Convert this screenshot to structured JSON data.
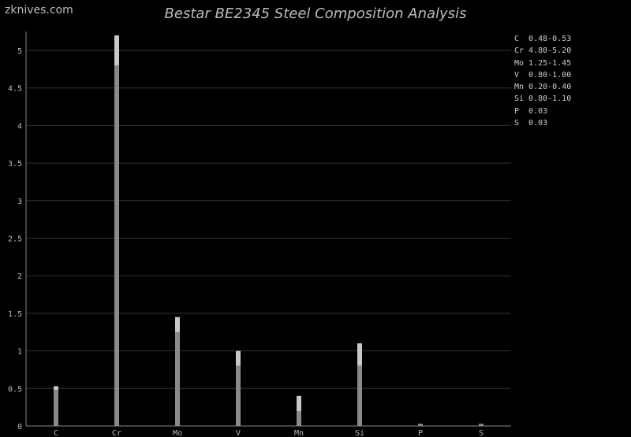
{
  "site_label": "zknives.com",
  "chart_data": {
    "type": "bar",
    "title": "Bestar BE2345 Steel Composition Analysis",
    "categories": [
      "C",
      "Cr",
      "Mo",
      "V",
      "Mn",
      "Si",
      "P",
      "S"
    ],
    "series": [
      {
        "values_min": [
          0.48,
          4.8,
          1.25,
          0.8,
          0.2,
          0.8,
          0.03,
          0.03
        ],
        "values_max": [
          0.53,
          5.2,
          1.45,
          1.0,
          0.4,
          1.1,
          0.03,
          0.03
        ]
      }
    ],
    "ylim": [
      0,
      5.2
    ],
    "yticks": [
      "0",
      "0.5",
      "1",
      "1.5",
      "2",
      "2.5",
      "3",
      "3.5",
      "4",
      "4.5",
      "5"
    ],
    "grid": true,
    "legend_placement": "top-right",
    "legend": [
      "C  0.48-0.53",
      "Cr 4.80-5.20",
      "Mo 1.25-1.45",
      "V  0.80-1.00",
      "Mn 0.20-0.40",
      "Si 0.80-1.10",
      "P  0.03",
      "S  0.03"
    ],
    "colors": {
      "min_bar": "#8a8a8a",
      "range_bar": "#c8c8c8",
      "grid": "#333333",
      "axis": "#888888",
      "text": "#bbbbbb"
    }
  }
}
